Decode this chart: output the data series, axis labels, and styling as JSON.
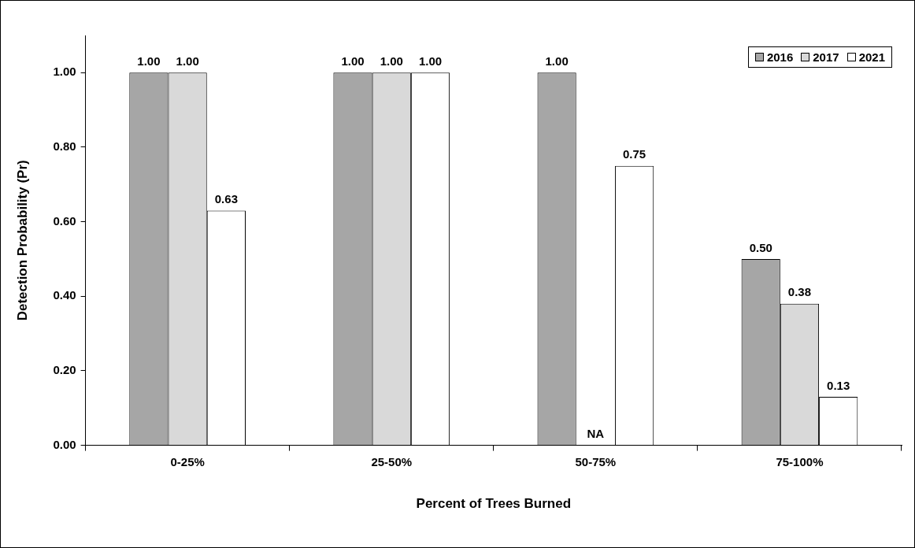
{
  "chart_data": {
    "type": "bar",
    "xlabel": "Percent of Trees Burned",
    "ylabel": "Detection Probability (Pr)",
    "categories": [
      "0-25%",
      "25-50%",
      "50-75%",
      "75-100%"
    ],
    "series": [
      {
        "name": "2016",
        "color": "#a6a6a6",
        "values": [
          1.0,
          1.0,
          1.0,
          0.5
        ],
        "value_labels": [
          "1.00",
          "1.00",
          "1.00",
          "0.50"
        ]
      },
      {
        "name": "2017",
        "color": "#d9d9d9",
        "values": [
          1.0,
          1.0,
          null,
          0.38
        ],
        "value_labels": [
          "1.00",
          "1.00",
          "NA",
          "0.38"
        ]
      },
      {
        "name": "2021",
        "color": "#ffffff",
        "values": [
          0.63,
          1.0,
          0.75,
          0.13
        ],
        "value_labels": [
          "0.63",
          "1.00",
          "0.75",
          "0.13"
        ]
      }
    ],
    "ylim": [
      0,
      1.1
    ],
    "yticks": [
      {
        "value": 0,
        "label": "0.00"
      },
      {
        "value": 0.2,
        "label": "0.20"
      },
      {
        "value": 0.4,
        "label": "0.40"
      },
      {
        "value": 0.6,
        "label": "0.60"
      },
      {
        "value": 0.8,
        "label": "0.80"
      },
      {
        "value": 1.0,
        "label": "1.00"
      }
    ],
    "legend": "top right"
  }
}
